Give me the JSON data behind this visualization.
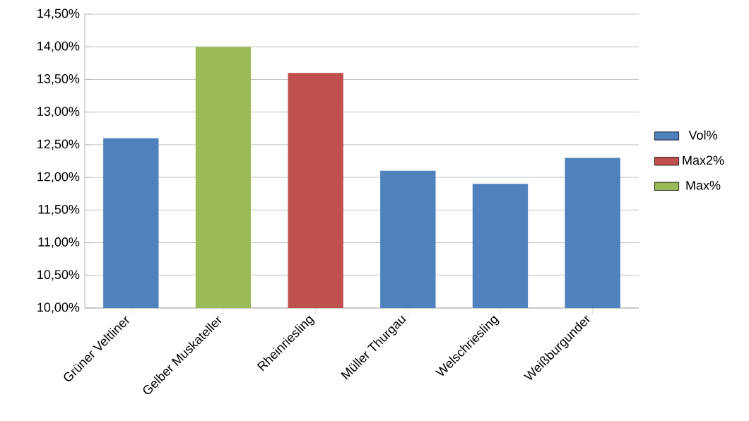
{
  "chart_data": {
    "type": "bar",
    "stacked": true,
    "categories": [
      "Grüner Veltliner",
      "Gelber Muskateller",
      "Rheinriesling",
      "Müller Thurgau",
      "Welschriesling",
      "Weißburgunder"
    ],
    "series": [
      {
        "name": "Vol%",
        "color": "#4f81bd",
        "values": [
          12.6,
          null,
          null,
          12.1,
          11.9,
          12.3
        ]
      },
      {
        "name": "Max2%",
        "color": "#c0504d",
        "values": [
          null,
          null,
          13.6,
          null,
          null,
          null
        ]
      },
      {
        "name": "Max%",
        "color": "#9bbb59",
        "values": [
          null,
          14.0,
          null,
          null,
          null,
          null
        ]
      }
    ],
    "ylim": [
      10,
      14.5
    ],
    "yticks": [
      {
        "value": 10,
        "label": "10,00%"
      },
      {
        "value": 10.5,
        "label": "10,50%"
      },
      {
        "value": 11,
        "label": "11,00%"
      },
      {
        "value": 11.5,
        "label": "11,50%"
      },
      {
        "value": 12,
        "label": "12,00%"
      },
      {
        "value": 12.5,
        "label": "12,50%"
      },
      {
        "value": 13,
        "label": "13,00%"
      },
      {
        "value": 13.5,
        "label": "13,50%"
      },
      {
        "value": 14,
        "label": "14,00%"
      },
      {
        "value": 14.5,
        "label": "14,50%"
      }
    ],
    "grid": "y",
    "legend": "right"
  }
}
